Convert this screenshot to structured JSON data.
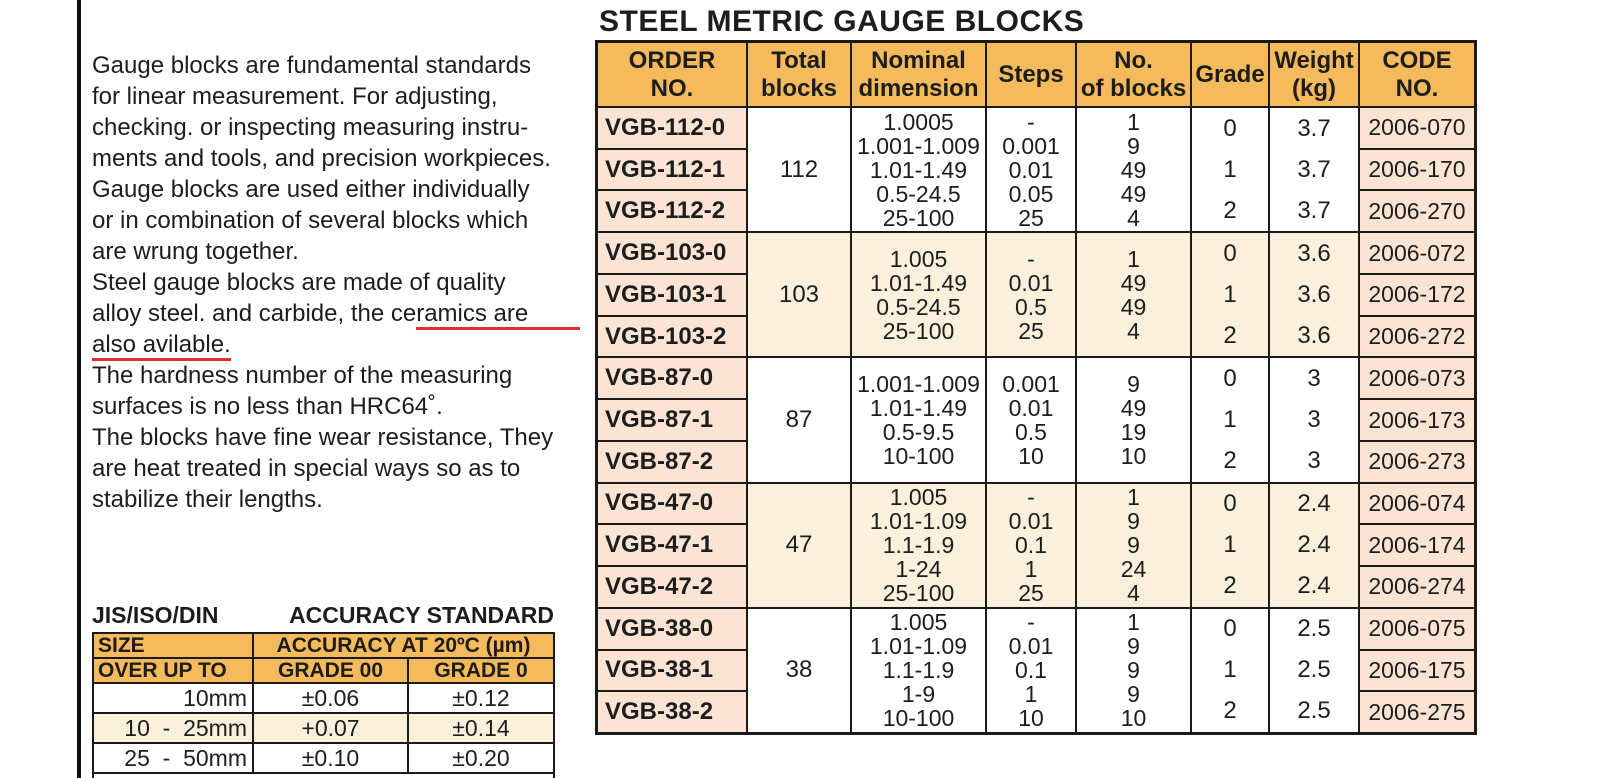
{
  "page": {
    "title": "STEEL METRIC GAUGE BLOCKS"
  },
  "colors": {
    "header_orange": "#F5BA5C",
    "cell_pink": "#FBE4D3",
    "group_cream": "#FAF0DC",
    "underline_red": "#E02F2F",
    "border": "#1A1A1A",
    "text": "#1D1D1D"
  },
  "description": {
    "lines": [
      [
        {
          "text": "Gauge blocks are fundamental standards"
        }
      ],
      [
        {
          "text": "for linear measurement. For adjusting,"
        }
      ],
      [
        {
          "text": "checking. or inspecting measuring instru-"
        }
      ],
      [
        {
          "text": "ments and tools, and precision workpieces."
        }
      ],
      [
        {
          "text": "Gauge blocks are used either individually"
        }
      ],
      [
        {
          "text": "or in combination of several blocks which"
        }
      ],
      [
        {
          "text": "are wrung together."
        }
      ],
      [
        {
          "text": "Steel gauge blocks are made of quality"
        }
      ],
      [
        {
          "text": "alloy steel. and carbide, the ce"
        },
        {
          "text": "ramics are",
          "underline": true,
          "extend": true
        }
      ],
      [
        {
          "text": "also avilable.",
          "underline": true
        }
      ],
      [
        {
          "text": "The hardness number of the measuring"
        }
      ],
      [
        {
          "text": "surfaces is no less than HRC64˚."
        }
      ],
      [
        {
          "text": "The blocks have fine wear resistance, They"
        }
      ],
      [
        {
          "text": "are heat treated in special ways so as to"
        }
      ],
      [
        {
          "text": "stabilize their lengths."
        }
      ]
    ]
  },
  "accuracy_section": {
    "heading_left": "JIS/ISO/DIN",
    "heading_right": "ACCURACY STANDARD",
    "size_label": "SIZE",
    "over_up_to_label": "OVER UP TO",
    "accuracy_header": "ACCURACY AT 20ºC (µm)",
    "grade_headers": [
      "GRADE 00",
      "GRADE 0"
    ],
    "rows": [
      {
        "size": "10mm",
        "grade00": "±0.06",
        "grade0": "±0.12",
        "bg": "white"
      },
      {
        "size": "10  -  25mm",
        "grade00": "+0.07",
        "grade0": "±0.14",
        "bg": "cream"
      },
      {
        "size": "25  -  50mm",
        "grade00": "±0.10",
        "grade0": "±0.20",
        "bg": "white"
      }
    ]
  },
  "main_table": {
    "headers": [
      {
        "lines": [
          "ORDER",
          "NO."
        ]
      },
      {
        "lines": [
          "Total",
          "blocks"
        ]
      },
      {
        "lines": [
          "Nominal",
          "dimension"
        ]
      },
      {
        "lines": [
          "Steps"
        ]
      },
      {
        "lines": [
          "No.",
          "of blocks"
        ]
      },
      {
        "lines": [
          "Grade"
        ]
      },
      {
        "lines": [
          "Weight",
          "(kg)"
        ]
      },
      {
        "lines": [
          "CODE",
          "NO."
        ]
      }
    ],
    "groups": [
      {
        "orders": [
          "VGB-112-0",
          "VGB-112-1",
          "VGB-112-2"
        ],
        "total_blocks": "112",
        "nominal": [
          "1.0005",
          "1.001-1.009",
          "1.01-1.49",
          "0.5-24.5",
          "25-100"
        ],
        "steps": [
          "-",
          "0.001",
          "0.01",
          "0.05",
          "25"
        ],
        "num_blocks": [
          "1",
          "9",
          "49",
          "49",
          "4"
        ],
        "grades": [
          "0",
          "1",
          "2"
        ],
        "weights": [
          "3.7",
          "3.7",
          "3.7"
        ],
        "codes": [
          "2006-070",
          "2006-170",
          "2006-270"
        ],
        "bg": "white"
      },
      {
        "orders": [
          "VGB-103-0",
          "VGB-103-1",
          "VGB-103-2"
        ],
        "total_blocks": "103",
        "nominal": [
          "1.005",
          "1.01-1.49",
          "0.5-24.5",
          "25-100"
        ],
        "steps": [
          "-",
          "0.01",
          "0.5",
          "25"
        ],
        "num_blocks": [
          "1",
          "49",
          "49",
          "4"
        ],
        "grades": [
          "0",
          "1",
          "2"
        ],
        "weights": [
          "3.6",
          "3.6",
          "3.6"
        ],
        "codes": [
          "2006-072",
          "2006-172",
          "2006-272"
        ],
        "bg": "cream"
      },
      {
        "orders": [
          "VGB-87-0",
          "VGB-87-1",
          "VGB-87-2"
        ],
        "total_blocks": "87",
        "nominal": [
          "1.001-1.009",
          "1.01-1.49",
          "0.5-9.5",
          "10-100"
        ],
        "steps": [
          "0.001",
          "0.01",
          "0.5",
          "10"
        ],
        "num_blocks": [
          "9",
          "49",
          "19",
          "10"
        ],
        "grades": [
          "0",
          "1",
          "2"
        ],
        "weights": [
          "3",
          "3",
          "3"
        ],
        "codes": [
          "2006-073",
          "2006-173",
          "2006-273"
        ],
        "bg": "white"
      },
      {
        "orders": [
          "VGB-47-0",
          "VGB-47-1",
          "VGB-47-2"
        ],
        "total_blocks": "47",
        "nominal": [
          "1.005",
          "1.01-1.09",
          "1.1-1.9",
          "1-24",
          "25-100"
        ],
        "steps": [
          "-",
          "0.01",
          "0.1",
          "1",
          "25"
        ],
        "num_blocks": [
          "1",
          "9",
          "9",
          "24",
          "4"
        ],
        "grades": [
          "0",
          "1",
          "2"
        ],
        "weights": [
          "2.4",
          "2.4",
          "2.4"
        ],
        "codes": [
          "2006-074",
          "2006-174",
          "2006-274"
        ],
        "bg": "cream"
      },
      {
        "orders": [
          "VGB-38-0",
          "VGB-38-1",
          "VGB-38-2"
        ],
        "total_blocks": "38",
        "nominal": [
          "1.005",
          "1.01-1.09",
          "1.1-1.9",
          "1-9",
          "10-100"
        ],
        "steps": [
          "-",
          "0.01",
          "0.1",
          "1",
          "10"
        ],
        "num_blocks": [
          "1",
          "9",
          "9",
          "9",
          "10"
        ],
        "grades": [
          "0",
          "1",
          "2"
        ],
        "weights": [
          "2.5",
          "2.5",
          "2.5"
        ],
        "codes": [
          "2006-075",
          "2006-175",
          "2006-275"
        ],
        "bg": "white"
      }
    ]
  }
}
